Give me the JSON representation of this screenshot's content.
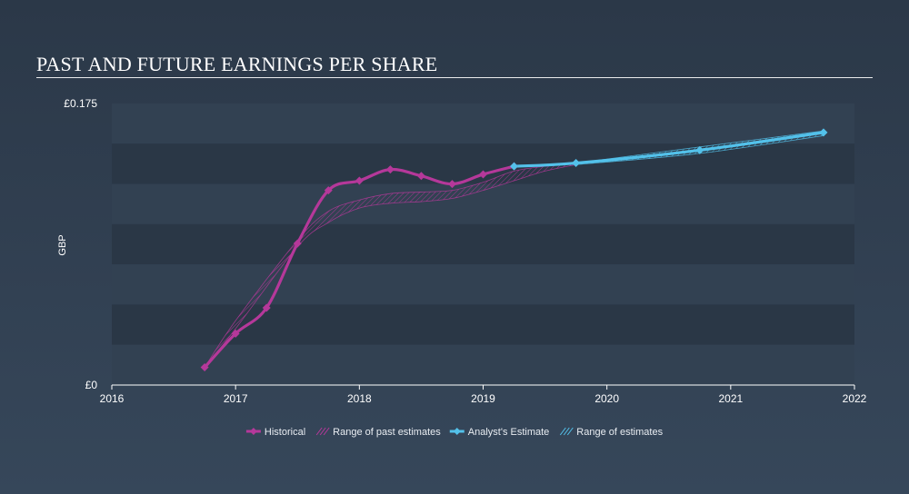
{
  "header": {
    "title": "PAST AND FUTURE EARNINGS PER SHARE"
  },
  "colors": {
    "historical": "#b5389a",
    "estimate": "#53c1ea",
    "band_dark": "#2a3746",
    "band_light": "#324152",
    "axis": "#ffffff"
  },
  "chart_data": {
    "type": "line",
    "title": "PAST AND FUTURE EARNINGS PER SHARE",
    "ylabel": "GBP",
    "xlabel": "",
    "x_range": [
      2016,
      2022
    ],
    "y_range": [
      0,
      0.175
    ],
    "x_ticks": [
      {
        "value": 2016,
        "label": "2016"
      },
      {
        "value": 2017,
        "label": "2017"
      },
      {
        "value": 2018,
        "label": "2018"
      },
      {
        "value": 2019,
        "label": "2019"
      },
      {
        "value": 2020,
        "label": "2020"
      },
      {
        "value": 2021,
        "label": "2021"
      },
      {
        "value": 2022,
        "label": "2022"
      }
    ],
    "y_ticks": [
      {
        "value": 0,
        "label": "£0"
      },
      {
        "value": 0.175,
        "label": "£0.175"
      }
    ],
    "grid": true,
    "legend_position": "bottom",
    "series": [
      {
        "name": "Historical",
        "style": "solid-diamond",
        "points": [
          [
            2016.75,
            0.011
          ],
          [
            2017.0,
            0.032
          ],
          [
            2017.25,
            0.048
          ],
          [
            2017.5,
            0.088
          ],
          [
            2017.75,
            0.121
          ],
          [
            2018.0,
            0.127
          ],
          [
            2018.25,
            0.134
          ],
          [
            2018.5,
            0.13
          ],
          [
            2018.75,
            0.125
          ],
          [
            2019.0,
            0.131
          ],
          [
            2019.25,
            0.136
          ]
        ]
      },
      {
        "name": "Range of past estimates",
        "style": "hatched-band",
        "upper": [
          [
            2016.75,
            0.011
          ],
          [
            2017.0,
            0.04
          ],
          [
            2017.5,
            0.09
          ],
          [
            2017.75,
            0.108
          ],
          [
            2018.0,
            0.115
          ],
          [
            2018.25,
            0.119
          ],
          [
            2018.5,
            0.12
          ],
          [
            2018.75,
            0.121
          ],
          [
            2019.0,
            0.126
          ],
          [
            2019.25,
            0.133
          ],
          [
            2019.5,
            0.136
          ],
          [
            2019.75,
            0.138
          ]
        ],
        "lower": [
          [
            2016.75,
            0.011
          ],
          [
            2017.0,
            0.035
          ],
          [
            2017.5,
            0.086
          ],
          [
            2017.75,
            0.101
          ],
          [
            2018.0,
            0.11
          ],
          [
            2018.25,
            0.113
          ],
          [
            2018.5,
            0.114
          ],
          [
            2018.75,
            0.116
          ],
          [
            2019.0,
            0.121
          ],
          [
            2019.25,
            0.127
          ],
          [
            2019.5,
            0.133
          ],
          [
            2019.75,
            0.137
          ]
        ]
      },
      {
        "name": "Analyst's Estimate",
        "style": "solid-diamond",
        "points": [
          [
            2019.25,
            0.136
          ],
          [
            2019.75,
            0.138
          ],
          [
            2020.75,
            0.146
          ],
          [
            2021.75,
            0.157
          ]
        ]
      },
      {
        "name": "Range of estimates",
        "style": "hatched-band",
        "upper": [
          [
            2019.75,
            0.138
          ],
          [
            2020.75,
            0.148
          ],
          [
            2021.75,
            0.158
          ]
        ],
        "lower": [
          [
            2019.75,
            0.137
          ],
          [
            2020.75,
            0.144
          ],
          [
            2021.75,
            0.155
          ]
        ]
      }
    ],
    "legend": [
      {
        "label": "Historical",
        "kind": "line",
        "color_key": "historical"
      },
      {
        "label": "Range of past estimates",
        "kind": "hatch",
        "color_key": "historical"
      },
      {
        "label": "Analyst's Estimate",
        "kind": "line",
        "color_key": "estimate"
      },
      {
        "label": "Range of estimates",
        "kind": "hatch",
        "color_key": "estimate"
      }
    ]
  }
}
